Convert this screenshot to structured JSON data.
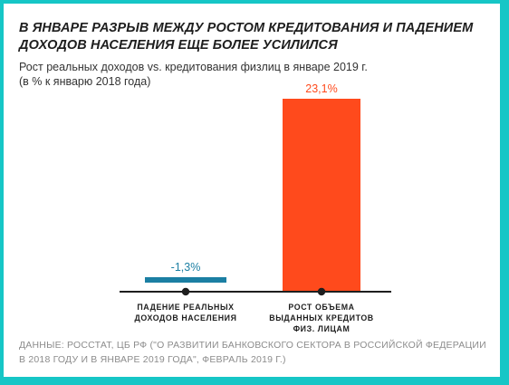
{
  "title": "В ЯНВАРЕ РАЗРЫВ МЕЖДУ РОСТОМ КРЕДИТОВАНИЯ И ПАДЕНИЕМ ДОХОДОВ НАСЕЛЕНИЯ ЕЩЕ БОЛЕЕ УСИЛИЛСЯ",
  "subtitle_line1": "Рост реальных доходов vs. кредитования физлиц в январе 2019 г.",
  "subtitle_line2": "(в % к январю 2018 года)",
  "source_line1": "ДАННЫЕ: РОССТАТ, ЦБ РФ (\"О РАЗВИТИИ БАНКОВСКОГО СЕКТОРА В РОССИЙСКОЙ ФЕДЕРАЦИИ",
  "source_line2": "В 2018 ГОДУ И В ЯНВАРЕ 2019 ГОДА\", ФЕВРАЛЬ 2019 Г.)",
  "colors": {
    "frame": "#16c6c6",
    "negative_bar": "#1b7fa3",
    "positive_bar": "#ff4a1c",
    "axis": "#1e1e1e"
  },
  "chart_data": {
    "type": "bar",
    "categories": [
      [
        "ПАДЕНИЕ РЕАЛЬНЫХ",
        "ДОХОДОВ НАСЕЛЕНИЯ"
      ],
      [
        "РОСТ ОБЪЕМА",
        "ВЫДАННЫХ КРЕДИТОВ",
        "ФИЗ. ЛИЦАМ"
      ]
    ],
    "values": [
      -1.3,
      23.1
    ],
    "value_labels": [
      "-1,3%",
      "23,1%"
    ],
    "value_label_colors": [
      "#1b7fa3",
      "#ff4a1c"
    ],
    "bar_colors": [
      "#1b7fa3",
      "#ff4a1c"
    ],
    "ylim": [
      -2,
      25
    ],
    "grid": false
  }
}
